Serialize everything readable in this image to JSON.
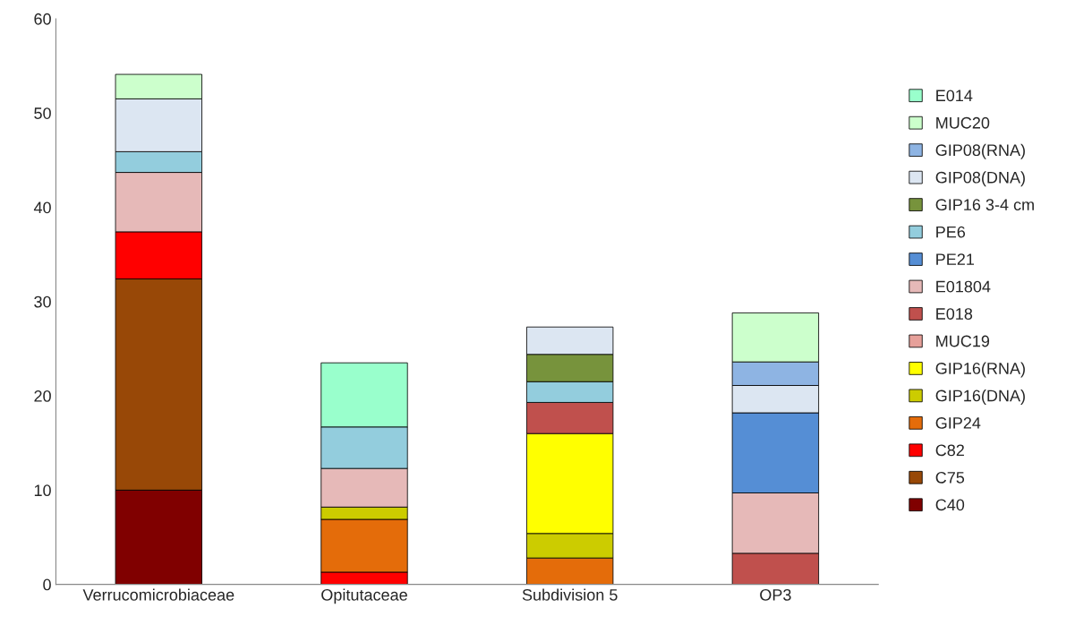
{
  "chart_data": {
    "type": "bar",
    "stacked": true,
    "categories": [
      "Verrucomicrobiaceae",
      "Opitutaceae",
      "Subdivision 5",
      "OP3"
    ],
    "ylim": [
      0,
      60
    ],
    "yticks": [
      0,
      10,
      20,
      30,
      40,
      50,
      60
    ],
    "grid": false,
    "legend": "right",
    "series": [
      {
        "name": "C40",
        "color": "#800000",
        "values": [
          10,
          null,
          null,
          null
        ]
      },
      {
        "name": "C75",
        "color": "#984807",
        "values": [
          22.4,
          null,
          null,
          null
        ]
      },
      {
        "name": "C82",
        "color": "#ff0000",
        "values": [
          5.0,
          1.3,
          null,
          null
        ]
      },
      {
        "name": "GIP24",
        "color": "#e46c0a",
        "values": [
          null,
          5.6,
          2.8,
          null
        ]
      },
      {
        "name": "GIP16(DNA)",
        "color": "#cccc00",
        "values": [
          null,
          1.3,
          2.6,
          null
        ]
      },
      {
        "name": "GIP16(RNA)",
        "color": "#ffff00",
        "values": [
          null,
          null,
          10.6,
          null
        ]
      },
      {
        "name": "MUC19",
        "color": "#e6a09a",
        "values": [
          null,
          null,
          null,
          null
        ]
      },
      {
        "name": "E018",
        "color": "#c0504d",
        "values": [
          null,
          null,
          3.3,
          3.3
        ]
      },
      {
        "name": "E01804",
        "color": "#e6b9b8",
        "values": [
          6.3,
          4.1,
          null,
          6.4
        ]
      },
      {
        "name": "PE21",
        "color": "#558ed5",
        "values": [
          null,
          null,
          null,
          8.5
        ]
      },
      {
        "name": "PE6",
        "color": "#93cddd",
        "values": [
          2.2,
          4.4,
          2.2,
          null
        ]
      },
      {
        "name": "GIP16 3-4 cm",
        "color": "#77933c",
        "values": [
          null,
          null,
          2.9,
          null
        ]
      },
      {
        "name": "GIP08(DNA)",
        "color": "#dce6f2",
        "values": [
          5.6,
          null,
          2.9,
          2.9
        ]
      },
      {
        "name": "GIP08(RNA)",
        "color": "#8eb4e3",
        "values": [
          null,
          null,
          null,
          2.5
        ]
      },
      {
        "name": "MUC20",
        "color": "#ccffcc",
        "values": [
          2.6,
          null,
          null,
          5.2
        ]
      },
      {
        "name": "E014",
        "color": "#99ffcc",
        "values": [
          null,
          6.8,
          null,
          null
        ]
      }
    ]
  }
}
